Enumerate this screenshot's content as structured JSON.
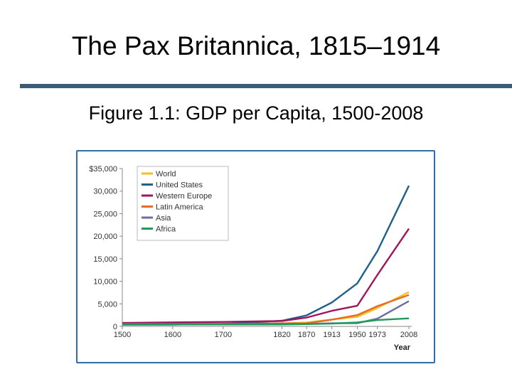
{
  "slide": {
    "title": "The Pax Britannica, 1815–1914",
    "subtitle": "Figure 1.1: GDP per Capita, 1500-2008"
  },
  "colors": {
    "rule": "#3d5a78",
    "frame": "#2f6fa6"
  },
  "chart_data": {
    "type": "line",
    "title": "",
    "xlabel": "Year",
    "ylabel": "",
    "categories": [
      "1500",
      "1600",
      "1700",
      "1820",
      "1870",
      "1913",
      "1950",
      "1973",
      "2008"
    ],
    "y_ticks": [
      "$35,000",
      "30,000",
      "25,000",
      "20,000",
      "15,000",
      "10,000",
      "5,000",
      "0"
    ],
    "ylim": [
      0,
      35000
    ],
    "grid": false,
    "legend_position": "top-left",
    "series": [
      {
        "name": "World",
        "color": "#f2c21b",
        "values": [
          565,
          595,
          615,
          665,
          875,
          1525,
          2110,
          4090,
          7610
        ]
      },
      {
        "name": "United States",
        "color": "#1f5f8b",
        "values": [
          400,
          400,
          530,
          1255,
          2445,
          5300,
          9560,
          16690,
          31180
        ]
      },
      {
        "name": "Western Europe",
        "color": "#a0155a",
        "values": [
          770,
          895,
          995,
          1200,
          1960,
          3460,
          4580,
          11420,
          21670
        ]
      },
      {
        "name": "Latin America",
        "color": "#e8692a",
        "values": [
          415,
          440,
          530,
          690,
          675,
          1480,
          2505,
          4500,
          6970
        ]
      },
      {
        "name": "Asia",
        "color": "#6a6f9c",
        "values": [
          570,
          575,
          570,
          580,
          555,
          695,
          715,
          1720,
          5610
        ]
      },
      {
        "name": "Africa",
        "color": "#1e9a5c",
        "values": [
          415,
          420,
          420,
          420,
          500,
          635,
          890,
          1410,
          1780
        ]
      }
    ]
  }
}
